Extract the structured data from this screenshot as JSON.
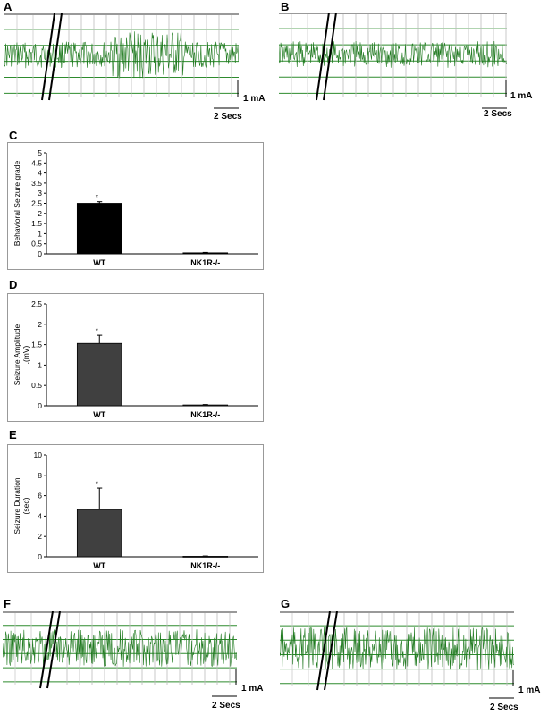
{
  "panels": {
    "A": "A",
    "B": "B",
    "C": "C",
    "D": "D",
    "E": "E",
    "F": "F",
    "G": "G"
  },
  "eeg_traces": {
    "amplitude_scale": "1 mA",
    "time_scale": "2 Secs",
    "trace_color": "#1f7a1f",
    "grid_color": "#2e8b2e",
    "A": {
      "baseline_level": 0.5,
      "burst_level": 0.9
    },
    "B": {
      "baseline_level": 0.5,
      "burst_level": 0.5
    },
    "F": {
      "baseline_level": 0.8,
      "burst_level": 0.8
    },
    "G": {
      "baseline_level": 0.9,
      "burst_level": 0.9
    }
  },
  "chart_data": [
    {
      "type": "bar",
      "panel": "C",
      "categories": [
        "WT",
        "NK1R-/-"
      ],
      "values": [
        2.5,
        0.05
      ],
      "errors": [
        0.08,
        0.02
      ],
      "significance": [
        "*",
        ""
      ],
      "ylabel": "Behavioral Seizure grade",
      "ylim": [
        0,
        5
      ],
      "yticks": [
        "0",
        "0.5",
        "1",
        "1.5",
        "2",
        "2.5",
        "3",
        "3.5",
        "4",
        "4.5",
        "5"
      ],
      "bar_color": "#000000"
    },
    {
      "type": "bar",
      "panel": "D",
      "categories": [
        "WT",
        "NK1R-/-"
      ],
      "values": [
        1.53,
        0.02
      ],
      "errors": [
        0.2,
        0.01
      ],
      "significance": [
        "*",
        ""
      ],
      "ylabel": "Seizure Amplitude\n.(mV)",
      "ylim": [
        0,
        2.5
      ],
      "yticks": [
        "0",
        "0.5",
        "1",
        "1.5",
        "2",
        "2.5"
      ],
      "bar_color": "#404040"
    },
    {
      "type": "bar",
      "panel": "E",
      "categories": [
        "WT",
        "NK1R-/-"
      ],
      "values": [
        4.65,
        0.05
      ],
      "errors": [
        2.1,
        0.03
      ],
      "significance": [
        "*",
        ""
      ],
      "ylabel": "Seizure Duration\n(sec)",
      "ylim": [
        0,
        10
      ],
      "yticks": [
        "0",
        "2",
        "4",
        "6",
        "8",
        "10"
      ],
      "bar_color": "#404040"
    }
  ]
}
